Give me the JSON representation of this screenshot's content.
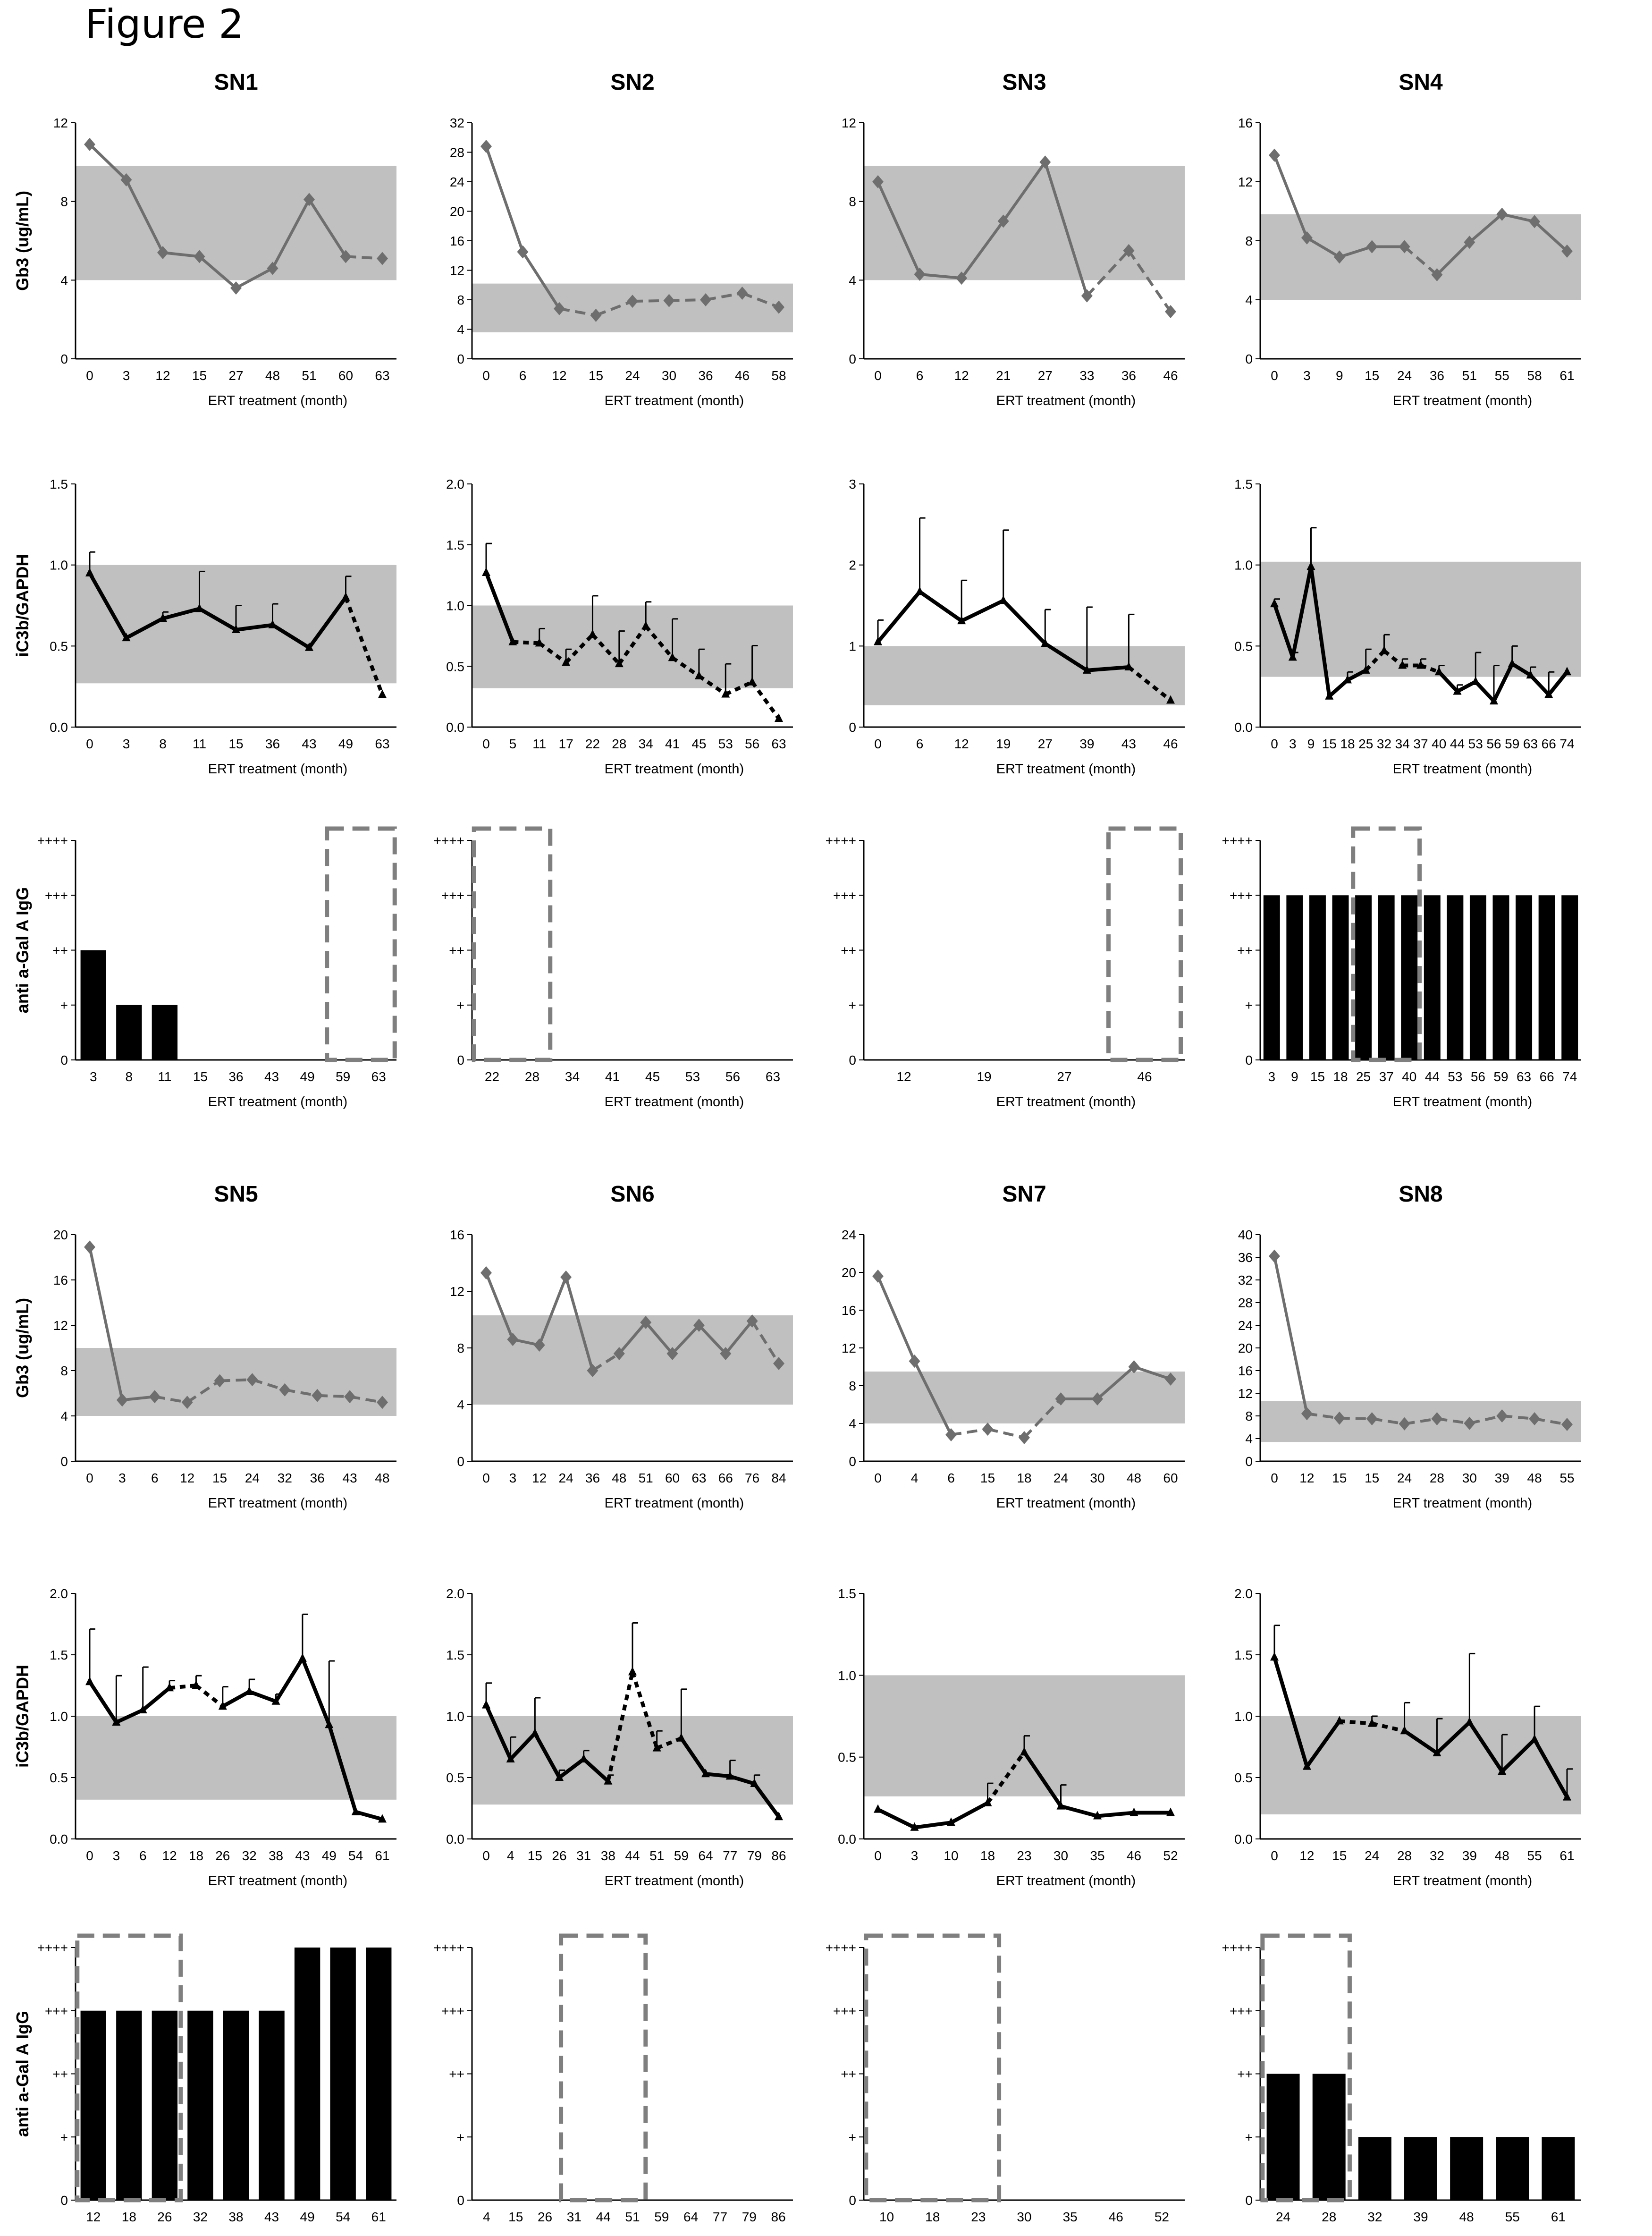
{
  "figure_title": "Figure 2",
  "colors": {
    "band": "#c0c0c0",
    "gb3_line": "#6e6e6e",
    "ic3b_line": "#000000",
    "bar": "#000000",
    "dash_box": "#7f7f7f"
  },
  "chart_data": [
    {
      "id": "sn1-gb3",
      "type": "line",
      "title": "SN1",
      "ylabel": "Gb3 (ug/mL)",
      "xlabel": "ERT treatment (month)",
      "ylim": [
        0,
        12
      ],
      "yticks": [
        "0",
        "4",
        "8",
        "12"
      ],
      "band": [
        4,
        9.8
      ],
      "categories": [
        "0",
        "3",
        "12",
        "15",
        "27",
        "48",
        "51",
        "60",
        "63"
      ],
      "values": [
        10.9,
        9.1,
        5.4,
        5.2,
        3.6,
        4.6,
        8.1,
        5.2,
        5.1
      ],
      "dashed_from": 7
    },
    {
      "id": "sn2-gb3",
      "type": "line",
      "title": "SN2",
      "ylabel": "",
      "xlabel": "ERT treatment (month)",
      "ylim": [
        0,
        32
      ],
      "yticks": [
        "0",
        "4",
        "8",
        "12",
        "16",
        "20",
        "24",
        "28",
        "32"
      ],
      "band": [
        3.6,
        10.2
      ],
      "categories": [
        "0",
        "6",
        "12",
        "15",
        "24",
        "30",
        "36",
        "46",
        "58"
      ],
      "values": [
        28.8,
        14.5,
        6.8,
        5.9,
        7.8,
        7.9,
        8,
        8.9,
        7
      ],
      "dashed_from": 2
    },
    {
      "id": "sn3-gb3",
      "type": "line",
      "title": "SN3",
      "ylabel": "",
      "xlabel": "ERT treatment (month)",
      "ylim": [
        0,
        12
      ],
      "yticks": [
        "0",
        "4",
        "8",
        "12"
      ],
      "band": [
        4,
        9.8
      ],
      "categories": [
        "0",
        "6",
        "12",
        "21",
        "27",
        "33",
        "36",
        "46"
      ],
      "values": [
        9,
        4.3,
        4.1,
        7,
        10,
        3.2,
        5.5,
        2.4
      ],
      "dashed_from": 5
    },
    {
      "id": "sn4-gb3",
      "type": "line",
      "title": "SN4",
      "ylabel": "",
      "xlabel": "ERT treatment (month)",
      "ylim": [
        0,
        16
      ],
      "yticks": [
        "0",
        "4",
        "8",
        "12",
        "16"
      ],
      "band": [
        4,
        9.8
      ],
      "categories": [
        "0",
        "3",
        "9",
        "15",
        "24",
        "36",
        "51",
        "55",
        "58",
        "61"
      ],
      "values": [
        13.8,
        8.2,
        6.9,
        7.6,
        7.6,
        5.7,
        7.9,
        9.8,
        9.3,
        7.3
      ],
      "dashed_segments": [
        4
      ]
    },
    {
      "id": "sn1-ic3b",
      "type": "line",
      "title": "",
      "ylabel": "iC3b/GAPDH",
      "xlabel": "ERT treatment (month)",
      "ylim": [
        0,
        1.5
      ],
      "yticks": [
        "0.0",
        "0.5",
        "1.0",
        "1.5"
      ],
      "band": [
        0.27,
        1
      ],
      "categories": [
        "0",
        "3",
        "8",
        "11",
        "15",
        "36",
        "43",
        "49",
        "63"
      ],
      "values": [
        0.95,
        0.55,
        0.67,
        0.73,
        0.6,
        0.63,
        0.49,
        0.8,
        0.2
      ],
      "errors": [
        0.13,
        0,
        0.04,
        0.23,
        0.15,
        0.13,
        0,
        0.13,
        0
      ],
      "dashed_from": 7
    },
    {
      "id": "sn2-ic3b",
      "type": "line",
      "title": "",
      "ylabel": "",
      "xlabel": "ERT treatment (month)",
      "ylim": [
        0,
        2
      ],
      "yticks": [
        "0.0",
        "0.5",
        "1.0",
        "1.5",
        "2.0"
      ],
      "band": [
        0.32,
        1
      ],
      "categories": [
        "0",
        "5",
        "11",
        "17",
        "22",
        "28",
        "34",
        "41",
        "45",
        "53",
        "56",
        "63"
      ],
      "values": [
        1.27,
        0.7,
        0.69,
        0.53,
        0.76,
        0.52,
        0.83,
        0.57,
        0.42,
        0.27,
        0.37,
        0.07
      ],
      "errors": [
        0.24,
        0,
        0.12,
        0.11,
        0.32,
        0.27,
        0.2,
        0.32,
        0.22,
        0.25,
        0.3,
        0
      ],
      "dashed_from": 1
    },
    {
      "id": "sn3-ic3b",
      "type": "line",
      "title": "",
      "ylabel": "",
      "xlabel": "ERT treatment (month)",
      "ylim": [
        0,
        3
      ],
      "yticks": [
        "0",
        "1",
        "2",
        "3"
      ],
      "band": [
        0.27,
        1
      ],
      "categories": [
        "0",
        "6",
        "12",
        "19",
        "27",
        "39",
        "43",
        "46"
      ],
      "values": [
        1.05,
        1.67,
        1.31,
        1.56,
        1.03,
        0.7,
        0.74,
        0.33
      ],
      "errors": [
        0.27,
        0.91,
        0.5,
        0.87,
        0.42,
        0.78,
        0.65,
        0
      ],
      "dashed_from": 6
    },
    {
      "id": "sn4-ic3b",
      "type": "line",
      "title": "",
      "ylabel": "",
      "xlabel": "ERT treatment (month)",
      "ylim": [
        0,
        1.5
      ],
      "yticks": [
        "0.0",
        "0.5",
        "1.0",
        "1.5"
      ],
      "band": [
        0.31,
        1.02
      ],
      "categories": [
        "0",
        "3",
        "9",
        "15",
        "18",
        "25",
        "32",
        "34",
        "37",
        "40",
        "44",
        "53",
        "56",
        "59",
        "63",
        "66",
        "74"
      ],
      "values": [
        0.76,
        0.43,
        0.99,
        0.19,
        0.29,
        0.35,
        0.47,
        0.38,
        0.38,
        0.34,
        0.22,
        0.28,
        0.16,
        0.39,
        0.32,
        0.2,
        0.34
      ],
      "errors": [
        0.03,
        0.03,
        0.24,
        0,
        0.05,
        0.13,
        0.1,
        0.04,
        0.04,
        0.04,
        0.04,
        0.18,
        0.22,
        0.11,
        0.05,
        0.14,
        0
      ],
      "dashed_segments": [
        5,
        6,
        7,
        8
      ]
    },
    {
      "id": "sn1-igg",
      "type": "bar",
      "title": "",
      "ylabel": "anti a-Gal A IgG",
      "xlabel": "ERT treatment (month)",
      "ylim": [
        0,
        4
      ],
      "yticks": [
        "0",
        "+",
        "++",
        "+++",
        "++++"
      ],
      "categories": [
        "3",
        "8",
        "11",
        "15",
        "36",
        "43",
        "49",
        "59",
        "63"
      ],
      "values": [
        2,
        1,
        1,
        0,
        0,
        0,
        0,
        0,
        0
      ],
      "box": [
        7,
        8
      ]
    },
    {
      "id": "sn2-igg",
      "type": "bar",
      "title": "",
      "ylabel": "",
      "xlabel": "ERT treatment (month)",
      "ylim": [
        0,
        4
      ],
      "yticks": [
        "0",
        "+",
        "++",
        "+++",
        "++++"
      ],
      "categories": [
        "22",
        "28",
        "34",
        "41",
        "45",
        "53",
        "56",
        "63"
      ],
      "values": [
        0,
        0,
        0,
        0,
        0,
        0,
        0,
        0
      ],
      "box": [
        0,
        1
      ]
    },
    {
      "id": "sn3-igg",
      "type": "bar",
      "title": "",
      "ylabel": "",
      "xlabel": "ERT treatment (month)",
      "ylim": [
        0,
        4
      ],
      "yticks": [
        "0",
        "+",
        "++",
        "+++",
        "++++"
      ],
      "categories": [
        "12",
        "19",
        "27",
        "46"
      ],
      "values": [
        0,
        0,
        0,
        0
      ],
      "box": [
        3,
        3
      ]
    },
    {
      "id": "sn4-igg",
      "type": "bar",
      "title": "",
      "ylabel": "",
      "xlabel": "ERT treatment (month)",
      "ylim": [
        0,
        4
      ],
      "yticks": [
        "0",
        "+",
        "++",
        "+++",
        "++++"
      ],
      "categories": [
        "3",
        "9",
        "15",
        "18",
        "25",
        "37",
        "40",
        "44",
        "53",
        "56",
        "59",
        "63",
        "66",
        "74"
      ],
      "values": [
        3,
        3,
        3,
        3,
        3,
        3,
        3,
        3,
        3,
        3,
        3,
        3,
        3,
        3
      ],
      "box": [
        4,
        6
      ]
    },
    {
      "id": "sn5-gb3",
      "type": "line",
      "title": "SN5",
      "ylabel": "Gb3 (ug/mL)",
      "xlabel": "ERT treatment (month)",
      "ylim": [
        0,
        20
      ],
      "yticks": [
        "0",
        "4",
        "8",
        "12",
        "16",
        "20"
      ],
      "band": [
        4,
        10
      ],
      "categories": [
        "0",
        "3",
        "6",
        "12",
        "15",
        "24",
        "32",
        "36",
        "43",
        "48"
      ],
      "values": [
        18.9,
        5.4,
        5.7,
        5.2,
        7.1,
        7.2,
        6.3,
        5.8,
        5.7,
        5.2
      ],
      "dashed_from": 2
    },
    {
      "id": "sn6-gb3",
      "type": "line",
      "title": "SN6",
      "ylabel": "",
      "xlabel": "ERT treatment (month)",
      "ylim": [
        0,
        16
      ],
      "yticks": [
        "0",
        "4",
        "8",
        "12",
        "16"
      ],
      "band": [
        4,
        10.3
      ],
      "categories": [
        "0",
        "3",
        "12",
        "24",
        "36",
        "48",
        "51",
        "60",
        "63",
        "66",
        "76",
        "84"
      ],
      "values": [
        13.3,
        8.6,
        8.2,
        13,
        6.4,
        7.6,
        9.8,
        7.6,
        9.6,
        7.6,
        9.9,
        6.9
      ],
      "dashed_segments": [
        4,
        10
      ]
    },
    {
      "id": "sn7-gb3",
      "type": "line",
      "title": "SN7",
      "ylabel": "",
      "xlabel": "ERT treatment (month)",
      "ylim": [
        0,
        24
      ],
      "yticks": [
        "0",
        "4",
        "8",
        "12",
        "16",
        "20",
        "24"
      ],
      "band": [
        4,
        9.5
      ],
      "categories": [
        "0",
        "4",
        "6",
        "15",
        "18",
        "24",
        "30",
        "48",
        "60"
      ],
      "values": [
        19.6,
        10.6,
        2.8,
        3.4,
        2.5,
        6.6,
        6.6,
        10,
        8.7
      ],
      "dashed_segments": [
        2,
        3,
        4
      ]
    },
    {
      "id": "sn8-gb3",
      "type": "line",
      "title": "SN8",
      "ylabel": "",
      "xlabel": "ERT treatment (month)",
      "ylim": [
        0,
        40
      ],
      "yticks": [
        "0",
        "4",
        "8",
        "12",
        "16",
        "20",
        "24",
        "28",
        "32",
        "36",
        "40"
      ],
      "band": [
        3.4,
        10.6
      ],
      "categories": [
        "0",
        "12",
        "15",
        "15",
        "24",
        "28",
        "30",
        "39",
        "48",
        "55"
      ],
      "values": [
        36.2,
        8.4,
        7.6,
        7.5,
        6.6,
        7.5,
        6.7,
        8,
        7.5,
        6.5
      ],
      "dashed_from": 1
    },
    {
      "id": "sn5-ic3b",
      "type": "line",
      "title": "",
      "ylabel": "iC3b/GAPDH",
      "xlabel": "ERT treatment (month)",
      "ylim": [
        0,
        2
      ],
      "yticks": [
        "0.0",
        "0.5",
        "1.0",
        "1.5",
        "2.0"
      ],
      "band": [
        0.32,
        1
      ],
      "categories": [
        "0",
        "3",
        "6",
        "12",
        "18",
        "26",
        "32",
        "38",
        "43",
        "49",
        "54",
        "61"
      ],
      "values": [
        1.28,
        0.95,
        1.05,
        1.23,
        1.25,
        1.08,
        1.2,
        1.12,
        1.47,
        0.93,
        0.22,
        0.16
      ],
      "errors": [
        0.43,
        0.38,
        0.35,
        0.06,
        0.08,
        0.16,
        0.1,
        0.06,
        0.36,
        0.52,
        0,
        0
      ],
      "dashed_segments": [
        3,
        4
      ]
    },
    {
      "id": "sn6-ic3b",
      "type": "line",
      "title": "",
      "ylabel": "",
      "xlabel": "ERT treatment (month)",
      "ylim": [
        0,
        2
      ],
      "yticks": [
        "0.0",
        "0.5",
        "1.0",
        "1.5",
        "2.0"
      ],
      "band": [
        0.28,
        1
      ],
      "categories": [
        "0",
        "4",
        "15",
        "26",
        "31",
        "38",
        "44",
        "51",
        "59",
        "64",
        "77",
        "79",
        "86"
      ],
      "values": [
        1.09,
        0.65,
        0.86,
        0.5,
        0.65,
        0.47,
        1.36,
        0.74,
        0.82,
        0.53,
        0.51,
        0.45,
        0.18
      ],
      "errors": [
        0.18,
        0.18,
        0.29,
        0.06,
        0.07,
        0.05,
        0.4,
        0.14,
        0.4,
        0,
        0.13,
        0.07,
        0
      ],
      "dashed_segments": [
        5,
        6,
        7
      ]
    },
    {
      "id": "sn7-ic3b",
      "type": "line",
      "title": "",
      "ylabel": "",
      "xlabel": "ERT treatment (month)",
      "ylim": [
        0,
        1.5
      ],
      "yticks": [
        "0.0",
        "0.5",
        "1.0",
        "1.5"
      ],
      "band": [
        0.26,
        1
      ],
      "categories": [
        "0",
        "3",
        "10",
        "18",
        "23",
        "30",
        "35",
        "46",
        "52"
      ],
      "values": [
        0.18,
        0.07,
        0.1,
        0.22,
        0.53,
        0.2,
        0.14,
        0.16,
        0.16
      ],
      "errors": [
        0,
        0,
        0,
        0.12,
        0.1,
        0.13,
        0,
        0,
        0
      ],
      "dashed_segments": [
        3
      ]
    },
    {
      "id": "sn8-ic3b",
      "type": "line",
      "title": "",
      "ylabel": "",
      "xlabel": "ERT treatment (month)",
      "ylim": [
        0,
        2
      ],
      "yticks": [
        "0.0",
        "0.5",
        "1.0",
        "1.5",
        "2.0"
      ],
      "band": [
        0.2,
        1
      ],
      "categories": [
        "0",
        "12",
        "15",
        "24",
        "28",
        "32",
        "39",
        "48",
        "55",
        "61"
      ],
      "values": [
        1.48,
        0.59,
        0.96,
        0.94,
        0.88,
        0.7,
        0.95,
        0.55,
        0.81,
        0.34
      ],
      "errors": [
        0.26,
        0,
        0,
        0.06,
        0.23,
        0.28,
        0.56,
        0.3,
        0.27,
        0.23
      ],
      "dashed_segments": [
        2,
        3
      ]
    },
    {
      "id": "sn5-igg",
      "type": "bar",
      "title": "",
      "ylabel": "anti a-Gal A IgG",
      "xlabel": "ERT treatment (month)",
      "ylim": [
        0,
        4
      ],
      "yticks": [
        "0",
        "+",
        "++",
        "+++",
        "++++"
      ],
      "categories": [
        "12",
        "18",
        "26",
        "32",
        "38",
        "43",
        "49",
        "54",
        "61"
      ],
      "values": [
        3,
        3,
        3,
        3,
        3,
        3,
        4,
        4,
        4
      ],
      "box": [
        0,
        2
      ]
    },
    {
      "id": "sn6-igg",
      "type": "bar",
      "title": "",
      "ylabel": "",
      "xlabel": "ERT treatment (month)",
      "ylim": [
        0,
        4
      ],
      "yticks": [
        "0",
        "+",
        "++",
        "+++",
        "++++"
      ],
      "categories": [
        "4",
        "15",
        "26",
        "31",
        "44",
        "51",
        "59",
        "64",
        "77",
        "79",
        "86"
      ],
      "values": [
        0,
        0,
        0,
        0,
        0,
        0,
        0,
        0,
        0,
        0,
        0
      ],
      "box": [
        3,
        5
      ]
    },
    {
      "id": "sn7-igg",
      "type": "bar",
      "title": "",
      "ylabel": "",
      "xlabel": "ERT treatment (month)",
      "ylim": [
        0,
        4
      ],
      "yticks": [
        "0",
        "+",
        "++",
        "+++",
        "++++"
      ],
      "categories": [
        "10",
        "18",
        "23",
        "30",
        "35",
        "46",
        "52"
      ],
      "values": [
        0,
        0,
        0,
        0,
        0,
        0,
        0
      ],
      "box": [
        0,
        2
      ]
    },
    {
      "id": "sn8-igg",
      "type": "bar",
      "title": "",
      "ylabel": "",
      "xlabel": "ERT treatment (month)",
      "ylim": [
        0,
        4
      ],
      "yticks": [
        "0",
        "+",
        "++",
        "+++",
        "++++"
      ],
      "categories": [
        "24",
        "28",
        "32",
        "39",
        "48",
        "55",
        "61"
      ],
      "values": [
        2,
        2,
        1,
        1,
        1,
        1,
        1
      ],
      "box": [
        0,
        1
      ]
    }
  ]
}
